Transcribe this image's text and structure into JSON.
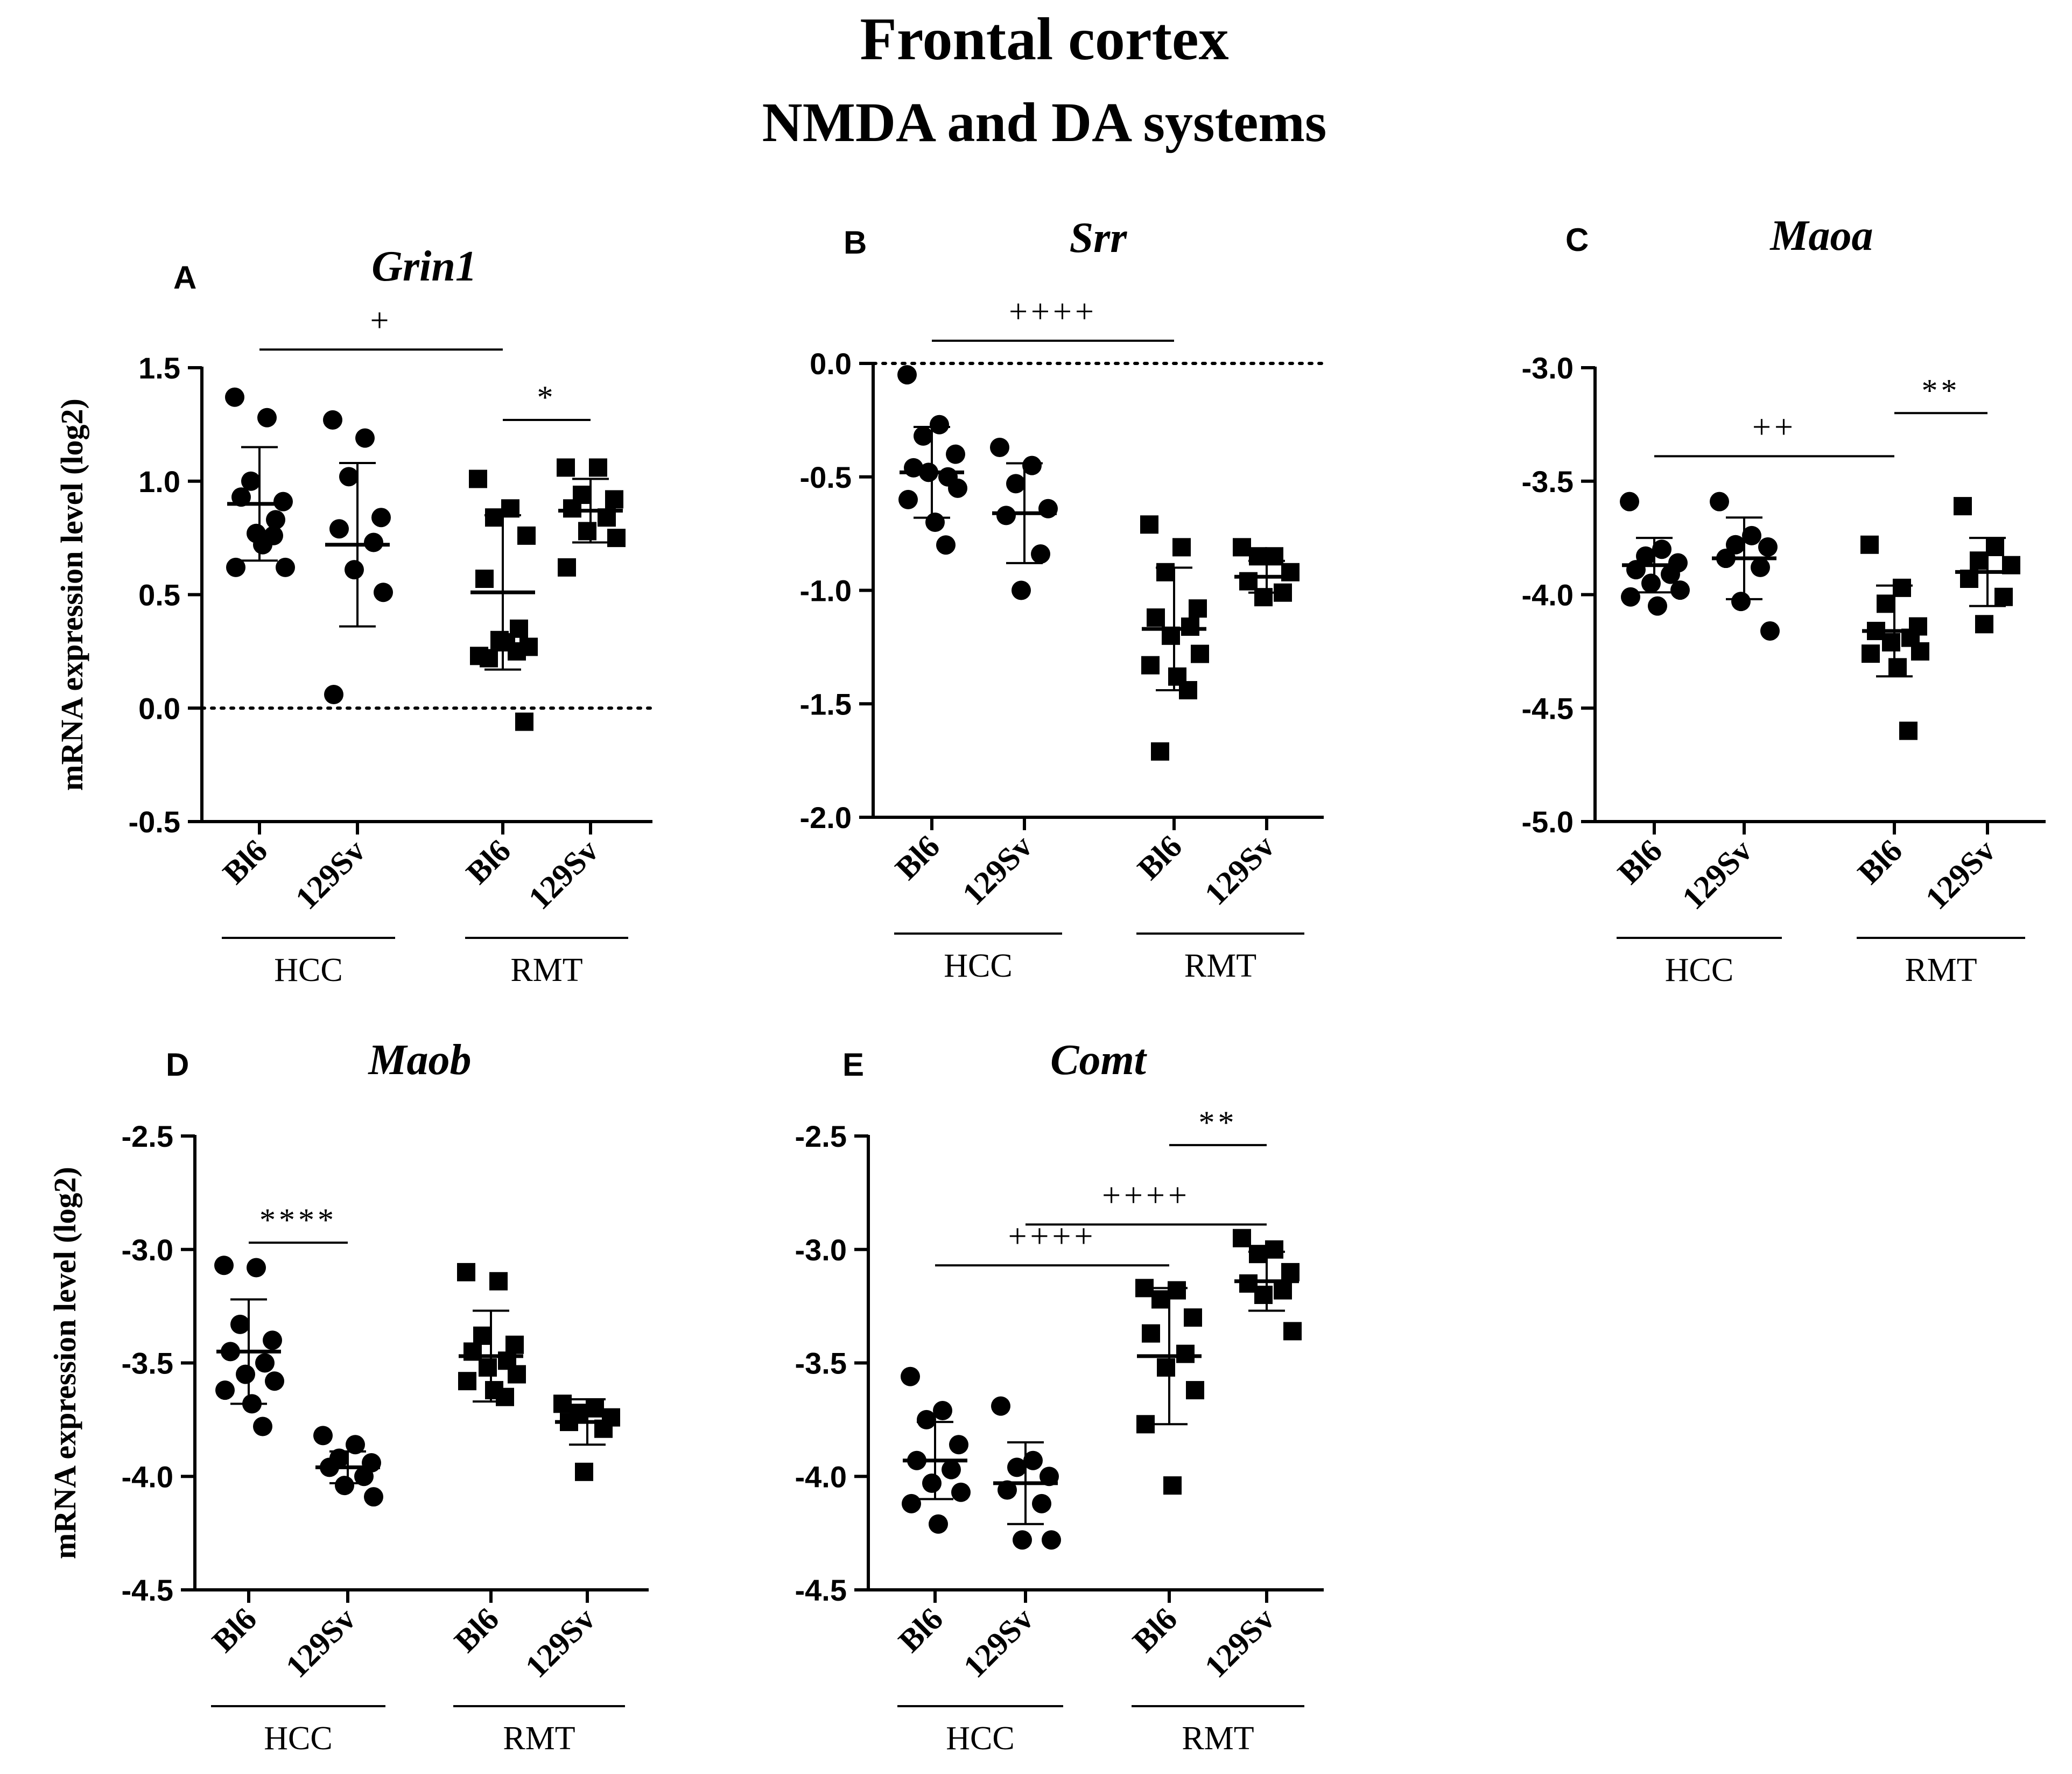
{
  "figure": {
    "title": "Frontal cortex",
    "subtitle": "NMDA and DA systems"
  },
  "chart_data": [
    {
      "panel": "A",
      "gene": "Grin1",
      "type": "scatter",
      "ylabel": "mRNA expression level (log2)",
      "ylim": [
        -0.5,
        1.5
      ],
      "yticks": [
        "-0.5",
        "0.0",
        "0.5",
        "1.0",
        "1.5"
      ],
      "reference_line": 0,
      "categories": [
        "Bl6",
        "129Sv",
        "Bl6",
        "129Sv"
      ],
      "groups": [
        "HCC",
        "RMT"
      ],
      "series": [
        {
          "name": "HCC Bl6",
          "marker": "circle",
          "mean": 0.9,
          "sd": 0.25,
          "points": [
            1.37,
            1.28,
            1.0,
            0.91,
            0.93,
            0.83,
            0.77,
            0.62,
            0.62,
            0.72,
            0.76
          ]
        },
        {
          "name": "HCC 129Sv",
          "marker": "circle",
          "mean": 0.72,
          "sd": 0.36,
          "points": [
            1.27,
            1.19,
            1.02,
            0.84,
            0.79,
            0.73,
            0.61,
            0.51,
            0.06
          ]
        },
        {
          "name": "RMT Bl6",
          "marker": "square",
          "mean": 0.51,
          "sd": 0.34,
          "points": [
            1.01,
            0.88,
            0.84,
            0.76,
            0.57,
            0.35,
            0.3,
            0.27,
            0.23,
            0.29,
            0.25,
            0.22,
            -0.06
          ]
        },
        {
          "name": "RMT 129Sv",
          "marker": "square",
          "mean": 0.87,
          "sd": 0.14,
          "points": [
            1.06,
            1.06,
            0.94,
            0.92,
            0.88,
            0.84,
            0.78,
            0.75,
            0.62
          ]
        }
      ],
      "annotations": [
        {
          "label": "+",
          "from": 0,
          "to": 2,
          "y": 1.58
        },
        {
          "label": "*",
          "from": 2,
          "to": 3,
          "y": 1.27
        }
      ]
    },
    {
      "panel": "B",
      "gene": "Srr",
      "type": "scatter",
      "ylabel": "",
      "ylim": [
        -2.0,
        0.0
      ],
      "yticks": [
        "-2.0",
        "-1.5",
        "-1.0",
        "-0.5",
        "0.0"
      ],
      "reference_line": 0,
      "categories": [
        "Bl6",
        "129Sv",
        "Bl6",
        "129Sv"
      ],
      "groups": [
        "HCC",
        "RMT"
      ],
      "series": [
        {
          "name": "HCC Bl6",
          "marker": "circle",
          "mean": -0.48,
          "sd": 0.2,
          "points": [
            -0.05,
            -0.27,
            -0.32,
            -0.4,
            -0.46,
            -0.5,
            -0.48,
            -0.55,
            -0.6,
            -0.7,
            -0.8
          ]
        },
        {
          "name": "HCC 129Sv",
          "marker": "circle",
          "mean": -0.66,
          "sd": 0.22,
          "points": [
            -0.37,
            -0.45,
            -0.53,
            -0.64,
            -0.67,
            -0.84,
            -1.0
          ]
        },
        {
          "name": "RMT Bl6",
          "marker": "square",
          "mean": -1.17,
          "sd": 0.27,
          "points": [
            -0.71,
            -0.81,
            -0.92,
            -1.08,
            -1.12,
            -1.16,
            -1.2,
            -1.28,
            -1.33,
            -1.38,
            -1.44,
            -1.71
          ]
        },
        {
          "name": "RMT 129Sv",
          "marker": "square",
          "mean": -0.94,
          "sd": 0.07,
          "points": [
            -0.81,
            -0.85,
            -0.85,
            -0.92,
            -0.96,
            -1.01,
            -1.03
          ]
        }
      ],
      "annotations": [
        {
          "label": "++++",
          "from": 0,
          "to": 2,
          "y": 0.1
        }
      ]
    },
    {
      "panel": "C",
      "gene": "Maoa",
      "type": "scatter",
      "ylabel": "",
      "ylim": [
        -5.0,
        -3.0
      ],
      "yticks": [
        "-5.0",
        "-4.5",
        "-4.0",
        "-3.5",
        "-3.0"
      ],
      "categories": [
        "Bl6",
        "129Sv",
        "Bl6",
        "129Sv"
      ],
      "groups": [
        "HCC",
        "RMT"
      ],
      "series": [
        {
          "name": "HCC Bl6",
          "marker": "circle",
          "mean": -3.87,
          "sd": 0.12,
          "points": [
            -3.59,
            -3.8,
            -3.83,
            -3.86,
            -3.89,
            -3.91,
            -3.95,
            -3.98,
            -4.01,
            -4.05
          ]
        },
        {
          "name": "HCC 129Sv",
          "marker": "circle",
          "mean": -3.84,
          "sd": 0.18,
          "points": [
            -3.59,
            -3.74,
            -3.78,
            -3.79,
            -3.84,
            -3.88,
            -4.03,
            -4.16
          ]
        },
        {
          "name": "RMT Bl6",
          "marker": "square",
          "mean": -4.16,
          "sd": 0.2,
          "points": [
            -3.78,
            -3.97,
            -4.04,
            -4.14,
            -4.16,
            -4.19,
            -4.21,
            -4.25,
            -4.26,
            -4.32,
            -4.6
          ]
        },
        {
          "name": "RMT 129Sv",
          "marker": "square",
          "mean": -3.9,
          "sd": 0.15,
          "points": [
            -3.61,
            -3.79,
            -3.85,
            -3.87,
            -3.93,
            -4.01,
            -4.13
          ]
        }
      ],
      "annotations": [
        {
          "label": "++",
          "from": 0,
          "to": 2,
          "y": -3.39
        },
        {
          "label": "**",
          "from": 2,
          "to": 3,
          "y": -3.2
        }
      ]
    },
    {
      "panel": "D",
      "gene": "Maob",
      "type": "scatter",
      "ylabel": "mRNA expression level (log2)",
      "ylim": [
        -4.5,
        -2.5
      ],
      "yticks": [
        "-4.5",
        "-4.0",
        "-3.5",
        "-3.0",
        "-2.5"
      ],
      "categories": [
        "Bl6",
        "129Sv",
        "Bl6",
        "129Sv"
      ],
      "groups": [
        "HCC",
        "RMT"
      ],
      "series": [
        {
          "name": "HCC Bl6",
          "marker": "circle",
          "mean": -3.45,
          "sd": 0.23,
          "points": [
            -3.07,
            -3.08,
            -3.33,
            -3.4,
            -3.45,
            -3.5,
            -3.55,
            -3.58,
            -3.62,
            -3.68,
            -3.78
          ]
        },
        {
          "name": "HCC 129Sv",
          "marker": "circle",
          "mean": -3.96,
          "sd": 0.07,
          "points": [
            -3.82,
            -3.86,
            -3.92,
            -3.94,
            -3.96,
            -4.0,
            -4.04,
            -4.09
          ]
        },
        {
          "name": "RMT Bl6",
          "marker": "square",
          "mean": -3.47,
          "sd": 0.2,
          "points": [
            -3.1,
            -3.14,
            -3.38,
            -3.42,
            -3.45,
            -3.49,
            -3.52,
            -3.55,
            -3.58,
            -3.62,
            -3.65
          ]
        },
        {
          "name": "RMT 129Sv",
          "marker": "square",
          "mean": -3.76,
          "sd": 0.1,
          "points": [
            -3.68,
            -3.7,
            -3.72,
            -3.74,
            -3.76,
            -3.79,
            -3.98
          ]
        }
      ],
      "annotations": [
        {
          "label": "****",
          "from": 0,
          "to": 1,
          "y": -2.97
        }
      ]
    },
    {
      "panel": "E",
      "gene": "Comt",
      "type": "scatter",
      "ylabel": "",
      "ylim": [
        -4.5,
        -2.5
      ],
      "yticks": [
        "-4.5",
        "-4.0",
        "-3.5",
        "-3.0",
        "-2.5"
      ],
      "categories": [
        "Bl6",
        "129Sv",
        "Bl6",
        "129Sv"
      ],
      "groups": [
        "HCC",
        "RMT"
      ],
      "series": [
        {
          "name": "HCC Bl6",
          "marker": "circle",
          "mean": -3.93,
          "sd": 0.17,
          "points": [
            -3.56,
            -3.71,
            -3.75,
            -3.86,
            -3.93,
            -3.97,
            -4.03,
            -4.07,
            -4.12,
            -4.21
          ]
        },
        {
          "name": "HCC 129Sv",
          "marker": "circle",
          "mean": -4.03,
          "sd": 0.18,
          "points": [
            -3.69,
            -3.93,
            -3.96,
            -4.0,
            -4.06,
            -4.12,
            -4.28,
            -4.28
          ]
        },
        {
          "name": "RMT Bl6",
          "marker": "square",
          "mean": -3.47,
          "sd": 0.3,
          "points": [
            -3.17,
            -3.18,
            -3.22,
            -3.3,
            -3.37,
            -3.46,
            -3.52,
            -3.62,
            -3.77,
            -4.04
          ]
        },
        {
          "name": "RMT 129Sv",
          "marker": "square",
          "mean": -3.14,
          "sd": 0.13,
          "points": [
            -2.95,
            -3.0,
            -3.02,
            -3.1,
            -3.15,
            -3.18,
            -3.2,
            -3.36
          ]
        }
      ],
      "annotations": [
        {
          "label": "++++",
          "from": 0,
          "to": 2,
          "y": -3.07
        },
        {
          "label": "++++",
          "from": 1,
          "to": 3,
          "y": -2.89
        },
        {
          "label": "**",
          "from": 2,
          "to": 3,
          "y": -2.54
        }
      ]
    }
  ]
}
